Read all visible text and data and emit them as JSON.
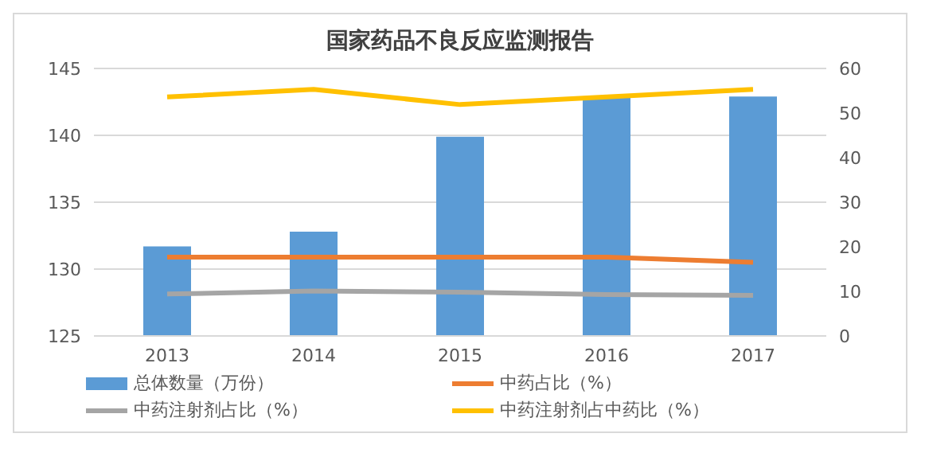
{
  "chart_data": {
    "type": "bar",
    "title": "国家药品不良反应监测报告",
    "categories": [
      "2013",
      "2014",
      "2015",
      "2016",
      "2017"
    ],
    "series": [
      {
        "name": "总体数量（万份）",
        "color": "#5b9bd5",
        "values": [
          131.7,
          132.8,
          139.9,
          142.9,
          142.9
        ]
      },
      {
        "name": "中药占比（%）",
        "type": "line",
        "axis": "y2",
        "color": "#ed7d31",
        "values": [
          17.7,
          17.7,
          17.7,
          17.7,
          16.5
        ]
      },
      {
        "name": "中药注射剂占比（%）",
        "type": "line",
        "axis": "y2",
        "color": "#a5a5a5",
        "values": [
          9.4,
          10.1,
          9.8,
          9.3,
          9.1
        ]
      },
      {
        "name": "中药注射剂占中药比（%）",
        "type": "line",
        "axis": "y2",
        "color": "#ffc000",
        "values": [
          53.6,
          55.3,
          51.9,
          53.6,
          55.3
        ]
      }
    ],
    "ylim": [
      125,
      145
    ],
    "yticks": [
      125,
      130,
      135,
      140,
      145
    ],
    "y2lim": [
      0,
      60
    ],
    "y2ticks": [
      0,
      10,
      20,
      30,
      40,
      50,
      60
    ],
    "grid": "y",
    "legend": "bottom",
    "marker": "none"
  }
}
